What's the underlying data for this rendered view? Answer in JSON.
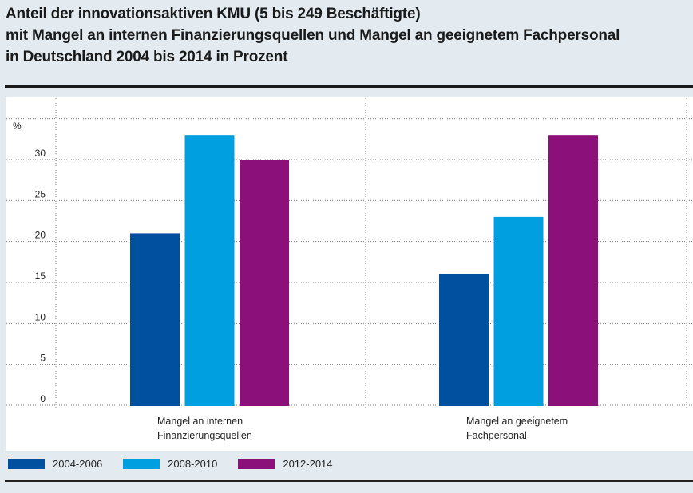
{
  "title_lines": [
    "Anteil der innovationsaktiven KMU (5 bis 249 Beschäftigte)",
    "mit Mangel an internen Finanzierungsquellen und Mangel an geeignetem Fachpersonal",
    "in Deutschland 2004 bis 2014 in Prozent"
  ],
  "chart_data": {
    "type": "bar",
    "title": "Anteil der innovationsaktiven KMU (5 bis 249 Beschäftigte) mit Mangel an internen Finanzierungsquellen und Mangel an geeignetem Fachpersonal in Deutschland 2004 bis 2014 in Prozent",
    "ylabel": "%",
    "ylim": [
      0,
      35
    ],
    "yticks": [
      0,
      5,
      10,
      15,
      20,
      25,
      30
    ],
    "grid": true,
    "legend_position": "bottom-left",
    "categories": [
      [
        "Mangel an internen",
        "Finanzierungsquellen"
      ],
      [
        "Mangel an geeignetem",
        "Fachpersonal"
      ]
    ],
    "series": [
      {
        "name": "2004-2006",
        "color": "#0050a0",
        "values": [
          21,
          16
        ]
      },
      {
        "name": "2008-2010",
        "color": "#009fe0",
        "values": [
          33,
          23
        ]
      },
      {
        "name": "2012-2014",
        "color": "#8c1079",
        "values": [
          30,
          33
        ]
      }
    ]
  }
}
